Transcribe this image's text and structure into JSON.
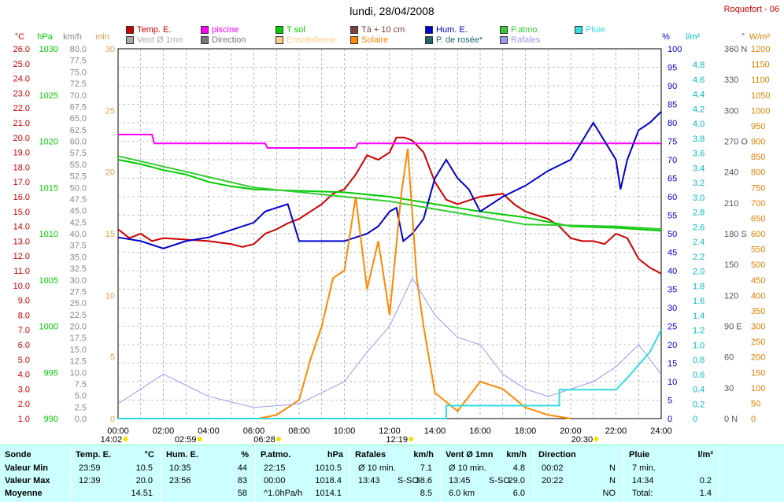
{
  "header": {
    "title": "lundi, 28/04/2008",
    "station": "Roquefort - 06"
  },
  "legend": [
    {
      "label": "Temp. E.",
      "color": "#cc0000"
    },
    {
      "label": "piscine",
      "color": "#ff00ff"
    },
    {
      "label": "T sol",
      "color": "#00cc00"
    },
    {
      "label": "Tà + 10 cm",
      "color": "#804040"
    },
    {
      "label": "Hum. E.",
      "color": "#0000cc"
    },
    {
      "label": "P.atmo.",
      "color": "#33cc33"
    },
    {
      "label": "Pluie",
      "color": "#33dddd"
    },
    {
      "label": "Vent Ø 1mn",
      "color": "#aaaaaa"
    },
    {
      "label": "Direction",
      "color": "#777777"
    },
    {
      "label": "Ensoleilleme",
      "color": "#ffcc88"
    },
    {
      "label": "Solaire",
      "color": "#ff8800"
    },
    {
      "label": "P. de rosée*",
      "color": "#226666"
    },
    {
      "label": "Rafales",
      "color": "#9999ee"
    }
  ],
  "axes": {
    "units": {
      "temp": "°C",
      "press": "hPa",
      "wind": "km/h",
      "minutes": "min",
      "hum": "%",
      "rain": "l/m²",
      "dir": "°",
      "solar": "W/m²"
    },
    "temp_ticks": [
      "26.0",
      "25.0",
      "24.0",
      "23.0",
      "22.0",
      "21.0",
      "20.0",
      "19.0",
      "18.0",
      "17.0",
      "16.0",
      "15.0",
      "14.0",
      "13.0",
      "12.0",
      "11.0",
      "10.0",
      "9.0",
      "8.0",
      "7.0",
      "6.0",
      "5.0",
      "4.0",
      "3.0",
      "2.0",
      "1.0"
    ],
    "press_ticks": [
      "1030",
      "1025",
      "1020",
      "1015",
      "1010",
      "1005",
      "1000",
      "995",
      "990"
    ],
    "wind_ticks": [
      "80.0",
      "77.5",
      "75.0",
      "72.5",
      "70.0",
      "67.5",
      "65.0",
      "62.5",
      "60.0",
      "57.5",
      "55.0",
      "52.5",
      "50.0",
      "47.5",
      "45.0",
      "42.5",
      "40.0",
      "37.5",
      "35.0",
      "32.5",
      "30.0",
      "27.5",
      "25.0",
      "22.5",
      "20.0",
      "17.5",
      "15.0",
      "12.5",
      "10.0",
      "7.5",
      "5.0",
      "2.5",
      "0.0"
    ],
    "minutes_ticks": [
      "30",
      "25",
      "20",
      "15",
      "10",
      "5",
      "0"
    ],
    "hum_ticks": [
      "100",
      "95",
      "90",
      "85",
      "80",
      "75",
      "70",
      "65",
      "60",
      "55",
      "50",
      "45",
      "40",
      "35",
      "30",
      "25",
      "20",
      "15",
      "10",
      "5",
      "0"
    ],
    "rain_ticks": [
      "4.8",
      "4.6",
      "4.4",
      "4.2",
      "4.0",
      "3.8",
      "3.6",
      "3.4",
      "3.2",
      "3.0",
      "2.8",
      "2.6",
      "2.4",
      "2.2",
      "2.0",
      "1.8",
      "1.6",
      "1.4",
      "1.2",
      "1.0",
      "0.8",
      "0.6",
      "0.4",
      "0.2",
      "0"
    ],
    "dir_ticks": [
      "360 N",
      "330",
      "300",
      "270 O",
      "240",
      "210",
      "180 S",
      "150",
      "120",
      "90 E",
      "60",
      "30",
      "0 N"
    ],
    "solar_ticks": [
      "1200",
      "1150",
      "1100",
      "1050",
      "1000",
      "950",
      "900",
      "850",
      "800",
      "750",
      "700",
      "650",
      "600",
      "550",
      "500",
      "450",
      "400",
      "350",
      "300",
      "250",
      "200",
      "150",
      "100",
      "50",
      "0"
    ],
    "time_ticks": [
      "00:00",
      "02:00",
      "04:00",
      "06:00",
      "08:00",
      "10:00",
      "12:00",
      "14:00",
      "16:00",
      "18:00",
      "20:00",
      "22:00",
      "24:00"
    ],
    "events": [
      {
        "label": "14:02",
        "hour": -0.3
      },
      {
        "label": "02:59",
        "hour": 2.98
      },
      {
        "label": "06:28",
        "hour": 6.47
      },
      {
        "label": "12:19",
        "hour": 12.32
      },
      {
        "label": "20:30",
        "hour": 20.5
      }
    ]
  },
  "chart_data": {
    "type": "line",
    "title": "lundi, 28/04/2008",
    "x_range_hours": [
      0,
      24
    ],
    "temp_range": [
      1,
      26
    ],
    "hum_range": [
      0,
      100
    ],
    "press_range": [
      990,
      1030
    ],
    "series": [
      {
        "name": "Temp. E.",
        "axis": "temp",
        "color": "#cc0000",
        "points": [
          [
            0,
            13.8
          ],
          [
            0.5,
            13.2
          ],
          [
            1,
            13.5
          ],
          [
            1.5,
            13.0
          ],
          [
            2,
            13.2
          ],
          [
            3,
            13.1
          ],
          [
            4,
            13.0
          ],
          [
            5,
            12.8
          ],
          [
            5.5,
            12.6
          ],
          [
            6,
            12.8
          ],
          [
            6.5,
            13.5
          ],
          [
            7,
            13.8
          ],
          [
            7.5,
            14.2
          ],
          [
            8,
            14.5
          ],
          [
            8.5,
            15.0
          ],
          [
            9,
            15.5
          ],
          [
            9.5,
            16.2
          ],
          [
            10,
            16.5
          ],
          [
            10.5,
            17.5
          ],
          [
            11,
            18.8
          ],
          [
            11.5,
            18.5
          ],
          [
            12,
            19.0
          ],
          [
            12.3,
            20.0
          ],
          [
            12.65,
            20.0
          ],
          [
            13,
            19.8
          ],
          [
            13.5,
            19.0
          ],
          [
            14,
            17.0
          ],
          [
            14.5,
            15.8
          ],
          [
            15,
            15.5
          ],
          [
            16,
            16.0
          ],
          [
            17,
            16.2
          ],
          [
            17.5,
            15.5
          ],
          [
            18,
            15.0
          ],
          [
            19,
            14.5
          ],
          [
            19.5,
            14.0
          ],
          [
            20,
            13.2
          ],
          [
            20.5,
            13.0
          ],
          [
            21,
            13.0
          ],
          [
            21.5,
            12.8
          ],
          [
            22,
            13.5
          ],
          [
            22.5,
            13.2
          ],
          [
            23,
            11.8
          ],
          [
            23.5,
            11.2
          ],
          [
            24,
            10.8
          ]
        ]
      },
      {
        "name": "piscine",
        "axis": "temp",
        "color": "#ff00ff",
        "points": [
          [
            0,
            20.2
          ],
          [
            1.5,
            20.2
          ],
          [
            1.6,
            19.6
          ],
          [
            6.5,
            19.6
          ],
          [
            6.6,
            19.3
          ],
          [
            10.5,
            19.3
          ],
          [
            10.6,
            19.6
          ],
          [
            24,
            19.6
          ]
        ]
      },
      {
        "name": "T sol",
        "axis": "temp",
        "color": "#00cc00",
        "points": [
          [
            0,
            18.5
          ],
          [
            1,
            18.2
          ],
          [
            2,
            17.8
          ],
          [
            3,
            17.5
          ],
          [
            4,
            17.0
          ],
          [
            5,
            16.7
          ],
          [
            6,
            16.5
          ],
          [
            8,
            16.4
          ],
          [
            10,
            16.3
          ],
          [
            12,
            16.0
          ],
          [
            14,
            15.5
          ],
          [
            16,
            15.0
          ],
          [
            18,
            14.6
          ],
          [
            19,
            14.3
          ],
          [
            20,
            14.0
          ],
          [
            22,
            13.9
          ],
          [
            24,
            13.7
          ]
        ]
      },
      {
        "name": "Hum. E.",
        "axis": "hum",
        "color": "#0000cc",
        "points": [
          [
            0,
            49
          ],
          [
            1,
            48
          ],
          [
            2,
            46
          ],
          [
            3,
            48
          ],
          [
            4,
            49
          ],
          [
            5,
            51
          ],
          [
            6,
            53
          ],
          [
            6.5,
            56
          ],
          [
            7,
            57
          ],
          [
            7.5,
            58
          ],
          [
            8,
            48
          ],
          [
            9,
            48
          ],
          [
            10,
            48
          ],
          [
            11,
            50
          ],
          [
            11.5,
            52
          ],
          [
            12,
            56
          ],
          [
            12.3,
            57
          ],
          [
            12.6,
            48
          ],
          [
            13,
            50
          ],
          [
            13.5,
            54
          ],
          [
            14,
            65
          ],
          [
            14.5,
            70
          ],
          [
            15,
            65
          ],
          [
            15.5,
            62
          ],
          [
            16,
            56
          ],
          [
            17,
            60
          ],
          [
            18,
            63
          ],
          [
            19,
            67
          ],
          [
            20,
            70
          ],
          [
            20.5,
            75
          ],
          [
            21,
            80
          ],
          [
            22,
            70
          ],
          [
            22.2,
            62
          ],
          [
            22.5,
            70
          ],
          [
            23,
            78
          ],
          [
            23.5,
            80
          ],
          [
            24,
            83
          ]
        ]
      },
      {
        "name": "P.atmo.",
        "axis": "press",
        "color": "#33cc33",
        "points": [
          [
            0,
            1018.4
          ],
          [
            6,
            1015.0
          ],
          [
            12,
            1013.5
          ],
          [
            18,
            1011.0
          ],
          [
            22,
            1010.8
          ],
          [
            24,
            1010.5
          ]
        ]
      },
      {
        "name": "Solaire",
        "axis": "hum",
        "color": "#ff8800",
        "points": [
          [
            6.2,
            0
          ],
          [
            7,
            1
          ],
          [
            8,
            5
          ],
          [
            8.5,
            16
          ],
          [
            9,
            25
          ],
          [
            9.5,
            38
          ],
          [
            10,
            40
          ],
          [
            10.5,
            60
          ],
          [
            11,
            35
          ],
          [
            11.5,
            48
          ],
          [
            12,
            28
          ],
          [
            12.5,
            60
          ],
          [
            12.8,
            73
          ],
          [
            13.2,
            38
          ],
          [
            13.5,
            25
          ],
          [
            14,
            7
          ],
          [
            15,
            2
          ],
          [
            16,
            10
          ],
          [
            17,
            8
          ],
          [
            18,
            3
          ],
          [
            19,
            1
          ],
          [
            20,
            0
          ]
        ]
      },
      {
        "name": "Rafales",
        "axis": "hum",
        "color": "#9999ee",
        "points": [
          [
            0,
            4
          ],
          [
            1,
            8
          ],
          [
            2,
            12
          ],
          [
            3,
            9
          ],
          [
            4,
            6
          ],
          [
            6,
            3
          ],
          [
            8,
            4
          ],
          [
            10,
            10
          ],
          [
            11,
            18
          ],
          [
            12,
            25
          ],
          [
            13,
            38
          ],
          [
            14,
            28
          ],
          [
            15,
            22
          ],
          [
            16,
            20
          ],
          [
            17,
            12
          ],
          [
            18,
            8
          ],
          [
            19,
            6
          ],
          [
            20,
            8
          ],
          [
            21,
            10
          ],
          [
            22,
            14
          ],
          [
            23,
            20
          ],
          [
            24,
            12
          ]
        ]
      },
      {
        "name": "Pluie",
        "axis": "hum",
        "color": "#33dddd",
        "points": [
          [
            0,
            0
          ],
          [
            14.5,
            0
          ],
          [
            14.5,
            3.5
          ],
          [
            19.5,
            3.5
          ],
          [
            19.5,
            7.8
          ],
          [
            22,
            7.8
          ],
          [
            22.5,
            11
          ],
          [
            23.5,
            18
          ],
          [
            24,
            24
          ]
        ]
      }
    ]
  },
  "summary": {
    "columns": [
      {
        "head": "Sonde",
        "unit": "",
        "rows": [
          [
            "Valeur Min",
            "",
            ""
          ],
          [
            "Valeur Max",
            "",
            ""
          ],
          [
            "Moyenne",
            "",
            ""
          ]
        ]
      },
      {
        "head": "Temp. E.",
        "unit": "°C",
        "rows": [
          [
            "23:59",
            "",
            "10.5"
          ],
          [
            "12:39",
            "",
            "20.0"
          ],
          [
            "",
            "",
            "14.51"
          ]
        ]
      },
      {
        "head": "Hum. E.",
        "unit": "%",
        "rows": [
          [
            "10:35",
            "",
            "44"
          ],
          [
            "23:56",
            "",
            "83"
          ],
          [
            "",
            "",
            "58"
          ]
        ]
      },
      {
        "head": "P.atmo.",
        "unit": "hPa",
        "rows": [
          [
            "22:15",
            "",
            "1010.5"
          ],
          [
            "00:00",
            "",
            "1018.4"
          ],
          [
            "^1.0hPa/h",
            "",
            "1014.1"
          ]
        ]
      },
      {
        "head": "Rafales",
        "unit": "km/h",
        "rows": [
          [
            "Ø 10 min.",
            "",
            "7.1"
          ],
          [
            "13:43",
            "S-SO",
            "38.6"
          ],
          [
            "",
            "",
            "8.5"
          ]
        ]
      },
      {
        "head": "Vent Ø 1mn",
        "unit": "km/h",
        "rows": [
          [
            "Ø 10 min.",
            "",
            "4.8"
          ],
          [
            "13:45",
            "S-SO",
            "29.0"
          ],
          [
            "6.0 km",
            "",
            "6.0"
          ]
        ]
      },
      {
        "head": "Direction",
        "unit": "",
        "rows": [
          [
            "00:02",
            "",
            "N"
          ],
          [
            "20:22",
            "",
            "N"
          ],
          [
            "",
            "",
            "NO"
          ]
        ]
      },
      {
        "head": "Pluie",
        "unit": "l/m²",
        "rows": [
          [
            "7 min.",
            "",
            ""
          ],
          [
            "14:34",
            "",
            "0.2"
          ],
          [
            "Total:",
            "",
            "1.4"
          ]
        ]
      }
    ]
  }
}
